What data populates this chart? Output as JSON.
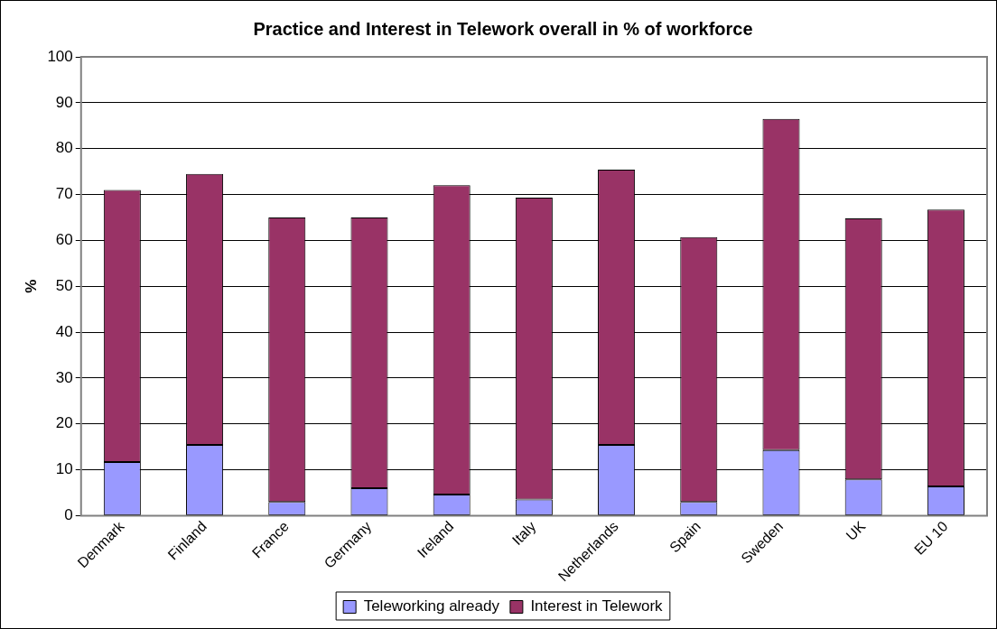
{
  "chart_data": {
    "type": "bar",
    "title": "Practice and Interest in Telework overall in % of workforce",
    "ylabel": "%",
    "categories": [
      "Denmark",
      "Finland",
      "France",
      "Germany",
      "Ireland",
      "Italy",
      "Netherlands",
      "Spain",
      "Sweden",
      "UK",
      "EU 10"
    ],
    "series": [
      {
        "name": "Teleworking already",
        "color": "#9999ff",
        "values": [
          11.7,
          15.4,
          3,
          6,
          4.6,
          3.5,
          15.4,
          3,
          14.3,
          7.9,
          6.4
        ]
      },
      {
        "name": "Interest in Telework",
        "color": "#993366",
        "values": [
          59.3,
          59.1,
          62,
          59,
          67.4,
          65.8,
          60,
          57.7,
          72.2,
          56.9,
          60.3
        ]
      }
    ],
    "stacked": true,
    "ylim": [
      0,
      100
    ],
    "yticks": [
      0,
      10,
      20,
      30,
      40,
      50,
      60,
      70,
      80,
      90,
      100
    ],
    "grid": "y",
    "legend": "bottom"
  }
}
